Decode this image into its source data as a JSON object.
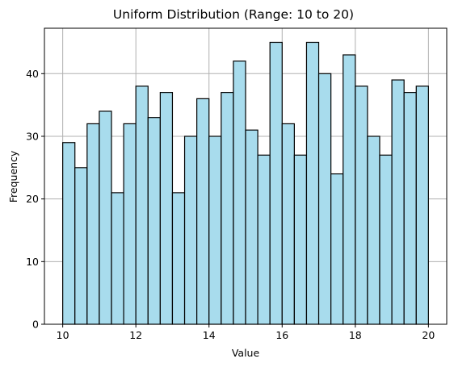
{
  "chart_data": {
    "type": "bar",
    "title": "Uniform Distribution (Range: 10 to 20)",
    "xlabel": "Value",
    "ylabel": "Frequency",
    "bin_start": 10,
    "bin_width": 0.3333,
    "values": [
      29,
      25,
      32,
      34,
      21,
      32,
      38,
      33,
      37,
      21,
      30,
      36,
      30,
      37,
      42,
      31,
      27,
      45,
      32,
      27,
      45,
      40,
      24,
      43,
      38,
      30,
      27,
      39,
      37,
      38
    ],
    "xlim": [
      9.5,
      20.5
    ],
    "ylim": [
      0,
      47.25
    ],
    "xticks": [
      10,
      12,
      14,
      16,
      18,
      20
    ],
    "yticks": [
      0,
      10,
      20,
      30,
      40
    ],
    "grid": true,
    "bar_color": "#a8dced",
    "edge_color": "#000000"
  }
}
